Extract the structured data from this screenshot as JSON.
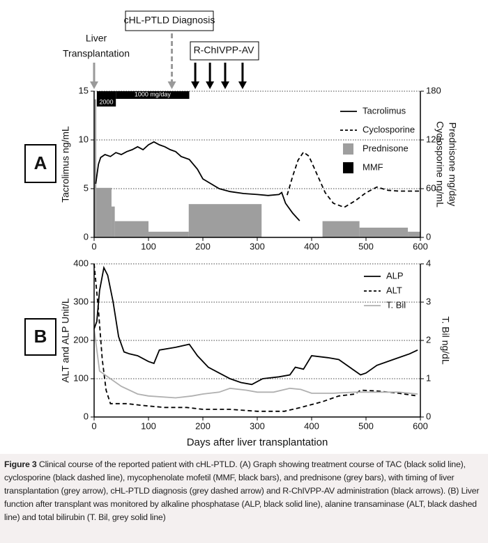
{
  "chart_data": [
    {
      "type": "line",
      "panel_label": "A",
      "ylabel": "Tacrolimus ng/mL",
      "y2label": [
        "Cyclosporine ng/mL",
        "Prednisone mg/day"
      ],
      "xlim": [
        0,
        600
      ],
      "xticks": [
        0,
        100,
        200,
        300,
        400,
        500,
        600
      ],
      "ylim": [
        0,
        15
      ],
      "yticks": [
        0,
        5,
        10,
        15
      ],
      "y2lim": [
        0,
        180
      ],
      "y2ticks": [
        0,
        60,
        120,
        180
      ],
      "grid": true,
      "legend": "upper right",
      "annotations": [
        {
          "lines": [
            "Liver",
            "Transplantation"
          ],
          "x": [
            0
          ],
          "color": "#9a9a9a",
          "dashed": false,
          "boxed": false
        },
        {
          "lines": [
            "cHL-PTLD Diagnosis"
          ],
          "x": [
            143
          ],
          "color": "#9a9a9a",
          "dashed": true,
          "boxed": true
        },
        {
          "lines": [
            "R-ChIVPP-AV"
          ],
          "x": [
            186,
            213,
            241,
            273
          ],
          "color": "#000000",
          "dashed": false,
          "boxed": true
        }
      ],
      "series": [
        {
          "name": "Tacrolimus",
          "kind": "line",
          "color": "#000000",
          "dashed": false,
          "x": [
            3,
            8,
            12,
            20,
            30,
            40,
            50,
            60,
            70,
            80,
            90,
            100,
            110,
            120,
            130,
            140,
            150,
            160,
            175,
            190,
            200,
            215,
            230,
            250,
            275,
            300,
            320,
            340,
            345,
            352,
            365,
            378
          ],
          "values": [
            5.5,
            7.5,
            8.2,
            8.5,
            8.3,
            8.7,
            8.5,
            8.8,
            9.0,
            9.3,
            9.0,
            9.5,
            9.8,
            9.5,
            9.3,
            9.0,
            8.8,
            8.3,
            8.0,
            7.0,
            6.0,
            5.5,
            5.0,
            4.7,
            4.5,
            4.4,
            4.3,
            4.4,
            4.6,
            3.5,
            2.5,
            1.7
          ]
        },
        {
          "name": "Cyclosporine",
          "kind": "line",
          "axis": "y2",
          "color": "#000000",
          "dashed": true,
          "x": [
            355,
            365,
            375,
            385,
            395,
            405,
            415,
            425,
            440,
            460,
            480,
            500,
            520,
            540,
            560,
            580,
            600
          ],
          "values": [
            52,
            75,
            95,
            105,
            100,
            85,
            70,
            55,
            42,
            37,
            45,
            55,
            62,
            58,
            57,
            57,
            57
          ]
        },
        {
          "name": "Prednisone",
          "kind": "bar",
          "axis": "y2",
          "color": "#9e9e9e",
          "bins": [
            0,
            4,
            32,
            38,
            100,
            174,
            308,
            420,
            488,
            577,
            600
          ],
          "values": [
            170,
            61,
            38,
            20,
            7,
            41,
            0,
            20,
            12,
            7
          ]
        },
        {
          "name": "MMF",
          "kind": "band",
          "color": "#000000",
          "bins": [
            5,
            40,
            175
          ],
          "values": [
            2000,
            1000
          ],
          "value_labels": [
            "2000",
            "1000 mg/day"
          ]
        }
      ]
    },
    {
      "type": "line",
      "panel_label": "B",
      "ylabel": "ALT and ALP Unit/L",
      "y2label": [
        "T. Bil ng/dL"
      ],
      "xlabel": "Days after liver transplantation",
      "xlim": [
        0,
        600
      ],
      "xticks": [
        0,
        100,
        200,
        300,
        400,
        500,
        600
      ],
      "ylim": [
        0,
        400
      ],
      "yticks": [
        0,
        100,
        200,
        300,
        400
      ],
      "y2lim": [
        0,
        4
      ],
      "y2ticks": [
        0,
        1,
        2,
        3,
        4
      ],
      "grid": true,
      "legend": "upper right",
      "series": [
        {
          "name": "ALP",
          "kind": "line",
          "color": "#000000",
          "dashed": false,
          "x": [
            0,
            5,
            10,
            18,
            25,
            35,
            45,
            55,
            65,
            80,
            100,
            110,
            120,
            150,
            175,
            190,
            210,
            230,
            250,
            270,
            290,
            310,
            340,
            360,
            370,
            385,
            400,
            430,
            450,
            470,
            490,
            500,
            520,
            550,
            580,
            595
          ],
          "values": [
            230,
            250,
            330,
            390,
            370,
            300,
            210,
            170,
            165,
            160,
            145,
            140,
            175,
            182,
            190,
            160,
            130,
            115,
            100,
            90,
            85,
            100,
            105,
            110,
            130,
            125,
            160,
            155,
            150,
            130,
            110,
            115,
            135,
            150,
            165,
            175
          ]
        },
        {
          "name": "ALT",
          "kind": "line",
          "color": "#000000",
          "dashed": true,
          "x": [
            0,
            8,
            15,
            22,
            30,
            60,
            90,
            130,
            170,
            200,
            250,
            300,
            350,
            380,
            420,
            450,
            480,
            490,
            520,
            560,
            595
          ],
          "values": [
            400,
            280,
            150,
            70,
            35,
            35,
            30,
            25,
            25,
            20,
            20,
            15,
            15,
            25,
            40,
            55,
            60,
            70,
            68,
            62,
            55
          ]
        },
        {
          "name": "T. Bil",
          "kind": "line",
          "axis": "y2",
          "color": "#b0b0b0",
          "dashed": false,
          "x": [
            0,
            10,
            30,
            50,
            80,
            100,
            150,
            180,
            200,
            230,
            250,
            280,
            300,
            330,
            360,
            380,
            400,
            440,
            480,
            520,
            560,
            595
          ],
          "values": [
            2.3,
            1.2,
            1.0,
            0.8,
            0.6,
            0.55,
            0.5,
            0.55,
            0.6,
            0.65,
            0.75,
            0.7,
            0.65,
            0.65,
            0.75,
            0.72,
            0.62,
            0.62,
            0.65,
            0.65,
            0.65,
            0.6
          ]
        }
      ]
    }
  ],
  "caption": {
    "label": "Figure 3",
    "text": "Clinical course of the reported patient with cHL-PTLD. (A) Graph showing treatment course of TAC (black solid line), cyclosporine (black dashed line), mycophenolate mofetil (MMF, black bars), and prednisone (grey bars), with timing of liver transplantation (grey arrow), cHL-PTLD diagnosis (grey dashed arrow) and R-ChIVPP-AV administration (black arrows). (B) Liver function after transplant was monitored by alkaline phosphatase (ALP, black solid line), alanine transaminase (ALT, black dashed line) and total bilirubin (T. Bil, grey solid line)"
  }
}
